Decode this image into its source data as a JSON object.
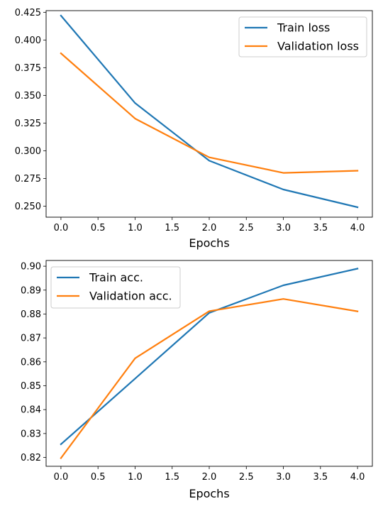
{
  "chart_data": [
    {
      "type": "line",
      "title": "",
      "xlabel": "Epochs",
      "ylabel": "",
      "x": [
        0,
        1,
        2,
        3,
        4
      ],
      "xlim": [
        -0.2,
        4.2
      ],
      "ylim": [
        0.24,
        0.4265
      ],
      "x_ticks": [
        0.0,
        0.5,
        1.0,
        1.5,
        2.0,
        2.5,
        3.0,
        3.5,
        4.0
      ],
      "x_tick_labels": [
        "0.0",
        "0.5",
        "1.0",
        "1.5",
        "2.0",
        "2.5",
        "3.0",
        "3.5",
        "4.0"
      ],
      "y_ticks": [
        0.25,
        0.275,
        0.3,
        0.325,
        0.35,
        0.375,
        0.4,
        0.425
      ],
      "y_tick_labels": [
        "0.250",
        "0.275",
        "0.300",
        "0.325",
        "0.350",
        "0.375",
        "0.400",
        "0.425"
      ],
      "grid": false,
      "legend_position": "top-right",
      "series": [
        {
          "name": "Train loss",
          "color": "#1f77b4",
          "values": [
            0.422,
            0.343,
            0.291,
            0.265,
            0.249
          ]
        },
        {
          "name": "Validation loss",
          "color": "#ff7f0e",
          "values": [
            0.388,
            0.329,
            0.294,
            0.28,
            0.282
          ]
        }
      ]
    },
    {
      "type": "line",
      "title": "",
      "xlabel": "Epochs",
      "ylabel": "",
      "x": [
        0,
        1,
        2,
        3,
        4
      ],
      "xlim": [
        -0.2,
        4.2
      ],
      "ylim": [
        0.8163,
        0.9024
      ],
      "x_ticks": [
        0.0,
        0.5,
        1.0,
        1.5,
        2.0,
        2.5,
        3.0,
        3.5,
        4.0
      ],
      "x_tick_labels": [
        "0.0",
        "0.5",
        "1.0",
        "1.5",
        "2.0",
        "2.5",
        "3.0",
        "3.5",
        "4.0"
      ],
      "y_ticks": [
        0.82,
        0.83,
        0.84,
        0.85,
        0.86,
        0.87,
        0.88,
        0.89,
        0.9
      ],
      "y_tick_labels": [
        "0.82",
        "0.83",
        "0.84",
        "0.85",
        "0.86",
        "0.87",
        "0.88",
        "0.89",
        "0.90"
      ],
      "grid": false,
      "legend_position": "top-left",
      "series": [
        {
          "name": "Train acc.",
          "color": "#1f77b4",
          "values": [
            0.8255,
            0.853,
            0.8805,
            0.892,
            0.899
          ]
        },
        {
          "name": "Validation acc.",
          "color": "#ff7f0e",
          "values": [
            0.8197,
            0.8615,
            0.8812,
            0.8863,
            0.8811
          ]
        }
      ]
    }
  ]
}
